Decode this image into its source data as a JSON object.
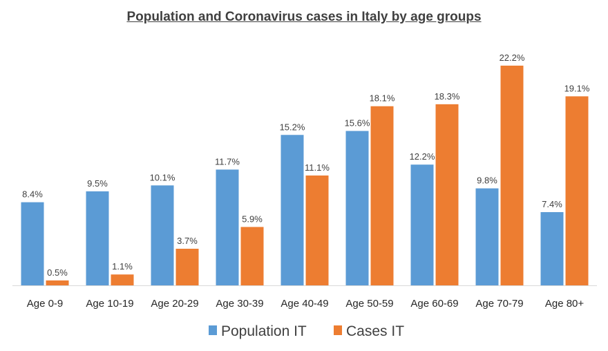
{
  "chart_data": {
    "type": "bar",
    "title": "Population and Coronavirus cases in Italy by age groups",
    "categories": [
      "Age 0-9",
      "Age 10-19",
      "Age 20-29",
      "Age 30-39",
      "Age 40-49",
      "Age 50-59",
      "Age 60-69",
      "Age 70-79",
      "Age 80+"
    ],
    "series": [
      {
        "name": "Population IT",
        "color": "#5B9BD5",
        "values": [
          8.4,
          9.5,
          10.1,
          11.7,
          15.2,
          15.6,
          12.2,
          9.8,
          7.4
        ],
        "labels": [
          "8.4%",
          "9.5%",
          "10.1%",
          "11.7%",
          "15.2%",
          "15.6%",
          "12.2%",
          "9.8%",
          "7.4%"
        ]
      },
      {
        "name": "Cases IT",
        "color": "#ED7D31",
        "values": [
          0.5,
          1.1,
          3.7,
          5.9,
          11.1,
          18.1,
          18.3,
          22.2,
          19.1
        ],
        "labels": [
          "0.5%",
          "1.1%",
          "3.7%",
          "5.9%",
          "11.1%",
          "18.1%",
          "18.3%",
          "22.2%",
          "19.1%"
        ]
      }
    ],
    "ylim": [
      0,
      23
    ],
    "grid": false,
    "legend_position": "bottom",
    "data_labels": true
  }
}
